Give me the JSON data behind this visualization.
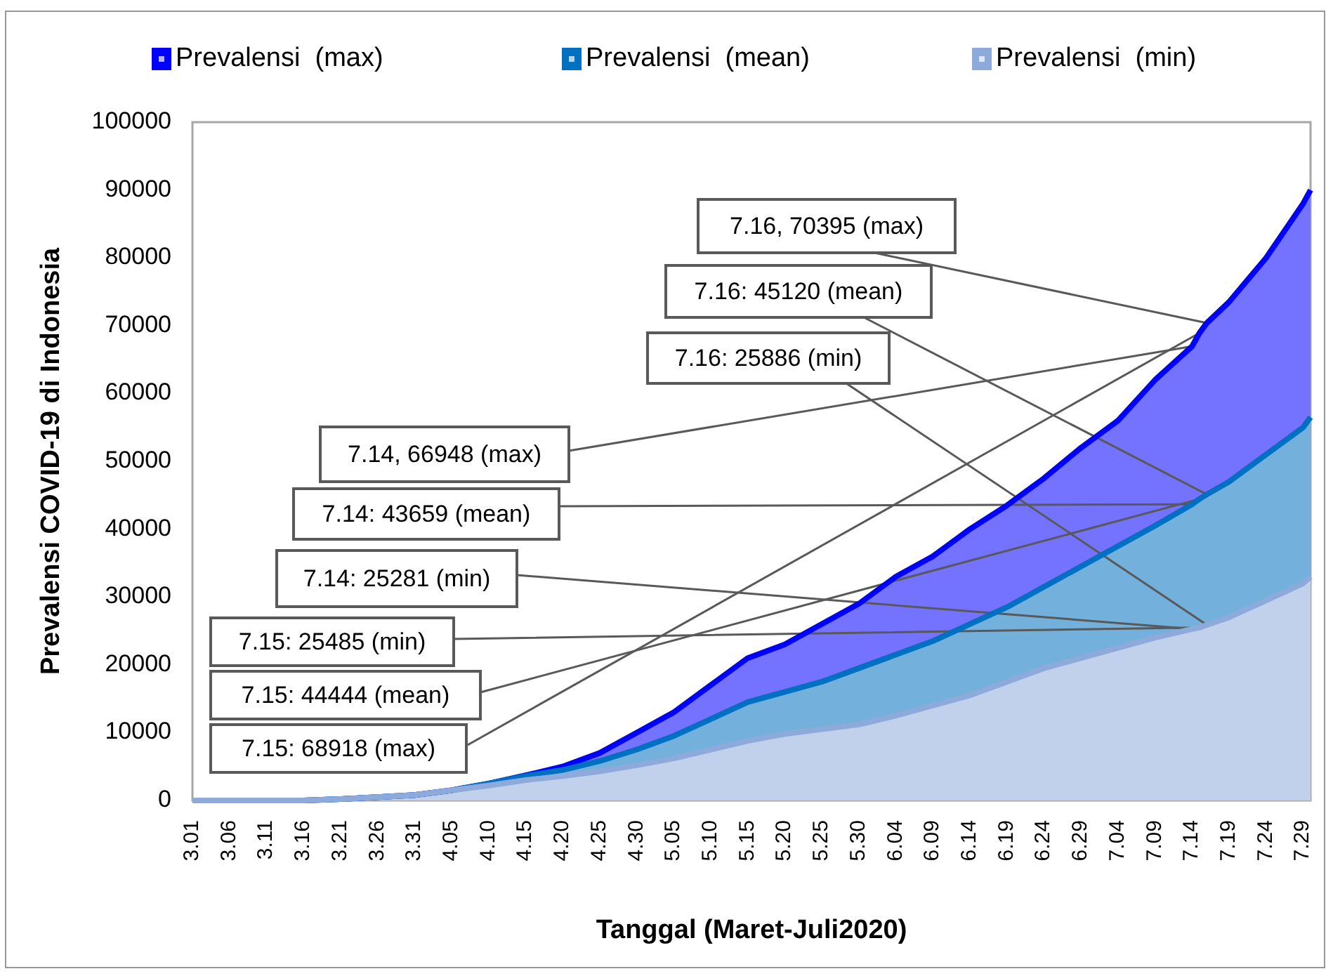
{
  "chart_data": {
    "type": "area",
    "xlabel": "Tanggal (Maret-Juli2020)",
    "ylabel": "Prevalensi COVID-19 di Indonesia",
    "x": [
      "2020-03-01",
      "2020-03-16",
      "2020-03-21",
      "2020-03-26",
      "2020-03-31",
      "2020-04-05",
      "2020-04-10",
      "2020-04-15",
      "2020-04-20",
      "2020-04-25",
      "2020-04-30",
      "2020-05-05",
      "2020-05-10",
      "2020-05-15",
      "2020-05-20",
      "2020-05-25",
      "2020-05-30",
      "2020-06-04",
      "2020-06-09",
      "2020-06-14",
      "2020-06-19",
      "2020-06-24",
      "2020-06-29",
      "2020-07-04",
      "2020-07-09",
      "2020-07-14",
      "2020-07-15",
      "2020-07-16",
      "2020-07-19",
      "2020-07-24",
      "2020-07-29",
      "2020-07-30"
    ],
    "series": [
      {
        "name": "Prevalensi  (max)",
        "color": "#0000ff",
        "values": [
          0,
          0,
          200,
          500,
          800,
          1500,
          2500,
          3700,
          5000,
          7000,
          10000,
          13000,
          17000,
          21000,
          23000,
          26000,
          29000,
          33000,
          36000,
          40000,
          43500,
          47500,
          52000,
          56000,
          62000,
          66948,
          68918,
          70395,
          73500,
          80000,
          88000,
          90000
        ]
      },
      {
        "name": "Prevalensi  (mean)",
        "color": "#0070c0",
        "values": [
          0,
          0,
          200,
          500,
          800,
          1500,
          2500,
          3600,
          4500,
          5800,
          7500,
          9500,
          12000,
          14500,
          16000,
          17500,
          19500,
          21500,
          23500,
          26000,
          28500,
          31500,
          34500,
          37500,
          40500,
          43659,
          44444,
          45120,
          47000,
          51000,
          55000,
          56500
        ]
      },
      {
        "name": "Prevalensi  (min)",
        "color": "#8eaadb",
        "values": [
          0,
          0,
          200,
          500,
          800,
          1500,
          2200,
          3000,
          3600,
          4300,
          5200,
          6200,
          7500,
          8800,
          9800,
          10500,
          11200,
          12500,
          14000,
          15500,
          17500,
          19500,
          21000,
          22500,
          24000,
          25281,
          25485,
          25886,
          27000,
          29500,
          32000,
          33000
        ]
      }
    ],
    "xlim": [
      "2020-03-01",
      "2020-07-30"
    ],
    "xticks": [
      {
        "value": "2020-03-01",
        "label": "3.01"
      },
      {
        "value": "2020-03-06",
        "label": "3.06"
      },
      {
        "value": "2020-03-11",
        "label": "3.11"
      },
      {
        "value": "2020-03-16",
        "label": "3.16"
      },
      {
        "value": "2020-03-21",
        "label": "3.21"
      },
      {
        "value": "2020-03-26",
        "label": "3.26"
      },
      {
        "value": "2020-03-31",
        "label": "3.31"
      },
      {
        "value": "2020-04-05",
        "label": "4.05"
      },
      {
        "value": "2020-04-10",
        "label": "4.10"
      },
      {
        "value": "2020-04-15",
        "label": "4.15"
      },
      {
        "value": "2020-04-20",
        "label": "4.20"
      },
      {
        "value": "2020-04-25",
        "label": "4.25"
      },
      {
        "value": "2020-04-30",
        "label": "4.30"
      },
      {
        "value": "2020-05-05",
        "label": "5.05"
      },
      {
        "value": "2020-05-10",
        "label": "5.10"
      },
      {
        "value": "2020-05-15",
        "label": "5.15"
      },
      {
        "value": "2020-05-20",
        "label": "5.20"
      },
      {
        "value": "2020-05-25",
        "label": "5.25"
      },
      {
        "value": "2020-05-30",
        "label": "5.30"
      },
      {
        "value": "2020-06-04",
        "label": "6.04"
      },
      {
        "value": "2020-06-09",
        "label": "6.09"
      },
      {
        "value": "2020-06-14",
        "label": "6.14"
      },
      {
        "value": "2020-06-19",
        "label": "6.19"
      },
      {
        "value": "2020-06-24",
        "label": "6.24"
      },
      {
        "value": "2020-06-29",
        "label": "6.29"
      },
      {
        "value": "2020-07-04",
        "label": "7.04"
      },
      {
        "value": "2020-07-09",
        "label": "7.09"
      },
      {
        "value": "2020-07-14",
        "label": "7.14"
      },
      {
        "value": "2020-07-19",
        "label": "7.19"
      },
      {
        "value": "2020-07-24",
        "label": "7.24"
      },
      {
        "value": "2020-07-29",
        "label": "7.29"
      }
    ],
    "ylim": [
      0,
      100000
    ],
    "yticks": [
      0,
      10000,
      20000,
      30000,
      40000,
      50000,
      60000,
      70000,
      80000,
      90000,
      100000
    ],
    "grid": false,
    "legend": "top",
    "annotations": [
      {
        "text": "7.16, 70395 (max)",
        "x": "2020-07-16",
        "y": 70395
      },
      {
        "text": "7.16: 45120 (mean)",
        "x": "2020-07-16",
        "y": 45120
      },
      {
        "text": "7.16: 25886 (min)",
        "x": "2020-07-16",
        "y": 25886
      },
      {
        "text": "7.14, 66948 (max)",
        "x": "2020-07-14",
        "y": 66948
      },
      {
        "text": "7.14: 43659 (mean)",
        "x": "2020-07-14",
        "y": 43659
      },
      {
        "text": "7.14: 25281 (min)",
        "x": "2020-07-14",
        "y": 25281
      },
      {
        "text": "7.15: 25485 (min)",
        "x": "2020-07-15",
        "y": 25485
      },
      {
        "text": "7.15: 44444 (mean)",
        "x": "2020-07-15",
        "y": 44444
      },
      {
        "text": "7.15: 68918 (max)",
        "x": "2020-07-15",
        "y": 68918
      }
    ]
  }
}
